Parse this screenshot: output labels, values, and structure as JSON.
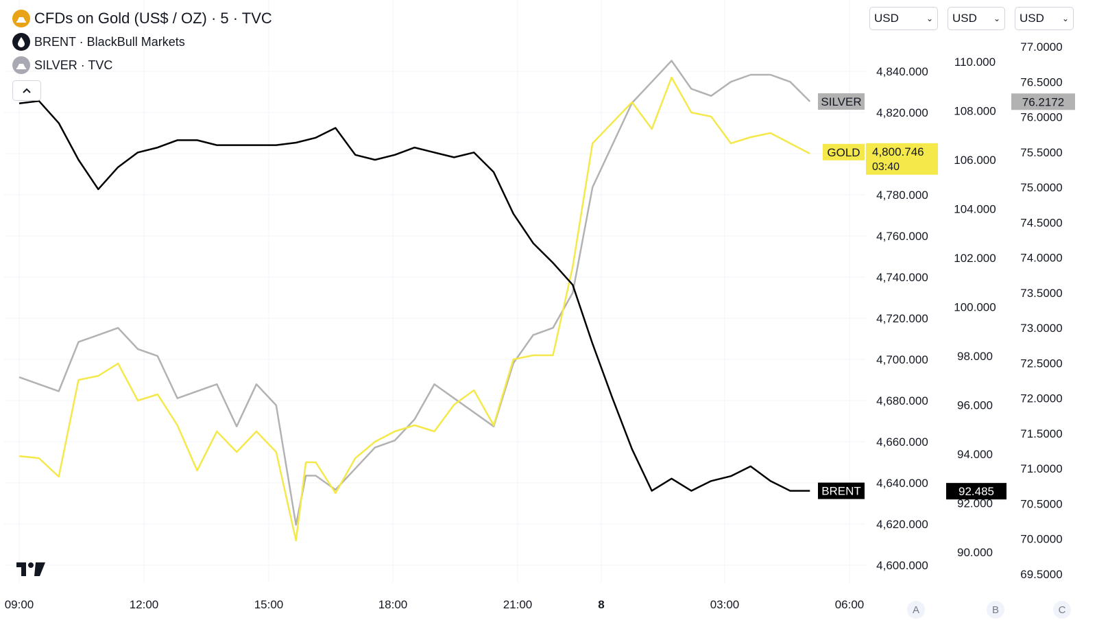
{
  "legend": {
    "main_title": "CFDs on Gold (US$ / OZ) · 5 · TVC",
    "brent_title": "BRENT · BlackBull Markets",
    "silver_title": "SILVER · TVC"
  },
  "currency_selects": [
    {
      "value": "USD"
    },
    {
      "value": "USD"
    },
    {
      "value": "USD"
    }
  ],
  "scale_buttons": [
    "A",
    "B",
    "C"
  ],
  "colors": {
    "gold": "#f5e84a",
    "silver": "#b2b2b2",
    "brent": "#000000",
    "gold_icon": "#e8a317",
    "grid": "#f0f3fa"
  },
  "chart_data": {
    "type": "line",
    "x_tick_labels": [
      "09:00",
      "12:00",
      "15:00",
      "18:00",
      "21:00",
      "8",
      "03:00",
      "06:00"
    ],
    "axes": {
      "A": {
        "series": "GOLD",
        "ticks": [
          "4,840.000",
          "4,820.000",
          "4,800.000",
          "4,780.000",
          "4,760.000",
          "4,740.000",
          "4,720.000",
          "4,700.000",
          "4,680.000",
          "4,660.000",
          "4,640.000",
          "4,620.000",
          "4,600.000"
        ]
      },
      "B": {
        "series": "BRENT",
        "ticks": [
          "110.000",
          "108.000",
          "106.000",
          "104.000",
          "102.000",
          "100.000",
          "98.000",
          "96.000",
          "94.000",
          "92.000",
          "90.000"
        ]
      },
      "C": {
        "series": "SILVER",
        "ticks": [
          "77.0000",
          "76.5000",
          "76.0000",
          "75.5000",
          "75.0000",
          "74.5000",
          "74.0000",
          "73.5000",
          "73.0000",
          "72.5000",
          "72.0000",
          "71.5000",
          "71.0000",
          "70.5000",
          "70.0000",
          "69.5000"
        ]
      }
    },
    "series": [
      {
        "name": "GOLD",
        "last_value": "4,800.746",
        "countdown": "03:40",
        "x": [
          "09:00",
          "09:30",
          "10:00",
          "10:30",
          "11:00",
          "11:30",
          "12:00",
          "12:30",
          "13:00",
          "13:30",
          "14:00",
          "14:30",
          "15:00",
          "15:30",
          "16:00",
          "16:15",
          "16:30",
          "17:00",
          "17:30",
          "18:00",
          "18:30",
          "19:00",
          "19:30",
          "20:00",
          "20:30",
          "21:00",
          "21:30",
          "22:00",
          "22:30",
          "23:00",
          "23:30",
          "00:30",
          "01:00",
          "01:30",
          "02:00",
          "02:30",
          "03:00",
          "03:30",
          "04:00",
          "04:30",
          "05:00"
        ],
        "values": [
          4653,
          4652,
          4643,
          4690,
          4692,
          4698,
          4680,
          4683,
          4668,
          4646,
          4665,
          4655,
          4665,
          4655,
          4612,
          4650,
          4650,
          4635,
          4652,
          4660,
          4665,
          4668,
          4665,
          4678,
          4685,
          4668,
          4700,
          4702,
          4702,
          4745,
          4805,
          4825,
          4812,
          4837,
          4820,
          4818,
          4805,
          4808,
          4810,
          4805,
          4800
        ]
      },
      {
        "name": "BRENT",
        "last_value": "92.485",
        "x": [
          "09:00",
          "09:30",
          "10:00",
          "10:30",
          "11:00",
          "11:30",
          "12:00",
          "12:30",
          "13:00",
          "13:30",
          "14:00",
          "14:30",
          "15:00",
          "15:30",
          "16:00",
          "16:30",
          "17:00",
          "17:30",
          "18:00",
          "18:30",
          "19:00",
          "19:30",
          "20:00",
          "20:30",
          "21:00",
          "21:30",
          "22:00",
          "22:30",
          "23:00",
          "23:30",
          "00:00",
          "00:30",
          "01:00",
          "01:30",
          "02:00",
          "02:30",
          "03:00",
          "03:30",
          "04:00",
          "04:30",
          "05:00"
        ],
        "values": [
          108.3,
          108.4,
          107.5,
          106.0,
          104.8,
          105.7,
          106.3,
          106.5,
          106.8,
          106.8,
          106.6,
          106.6,
          106.6,
          106.6,
          106.7,
          106.9,
          107.3,
          106.2,
          106.0,
          106.2,
          106.5,
          106.3,
          106.1,
          106.3,
          105.5,
          103.8,
          102.6,
          101.8,
          100.9,
          98.5,
          96.3,
          94.2,
          92.5,
          93.0,
          92.5,
          92.9,
          93.1,
          93.5,
          92.9,
          92.5,
          92.5
        ]
      },
      {
        "name": "SILVER",
        "last_value": "76.2172",
        "x": [
          "09:00",
          "09:30",
          "10:00",
          "10:30",
          "11:00",
          "11:30",
          "12:00",
          "12:30",
          "13:00",
          "13:30",
          "14:00",
          "14:30",
          "15:00",
          "15:30",
          "16:00",
          "16:15",
          "16:30",
          "17:00",
          "17:30",
          "18:00",
          "18:30",
          "19:00",
          "19:30",
          "20:00",
          "20:30",
          "21:00",
          "21:30",
          "22:00",
          "22:30",
          "23:00",
          "23:30",
          "00:30",
          "01:00",
          "01:30",
          "02:00",
          "02:30",
          "03:00",
          "03:30",
          "04:00",
          "04:30",
          "05:00"
        ],
        "values": [
          72.3,
          72.2,
          72.1,
          72.8,
          72.9,
          73.0,
          72.7,
          72.6,
          72.0,
          72.1,
          72.2,
          71.6,
          72.2,
          71.9,
          70.2,
          70.9,
          70.9,
          70.7,
          71.0,
          71.3,
          71.4,
          71.7,
          72.2,
          72.0,
          71.8,
          71.6,
          72.5,
          72.9,
          73.0,
          73.5,
          75.0,
          76.2,
          76.5,
          76.8,
          76.4,
          76.3,
          76.5,
          76.6,
          76.6,
          76.5,
          76.22
        ]
      }
    ]
  }
}
